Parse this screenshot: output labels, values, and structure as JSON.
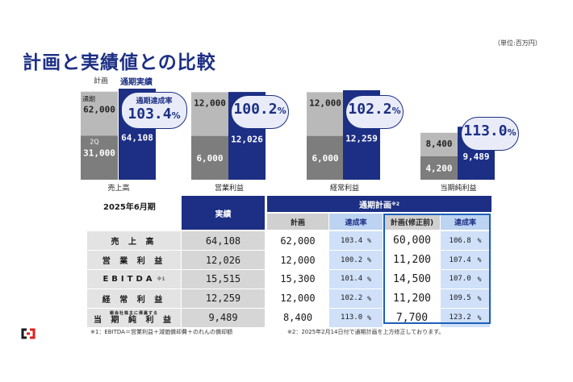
{
  "header": {
    "unit": "（単位:百万円）",
    "title": "計画と実績値との比較",
    "legend_plan": "計画",
    "legend_actual": "通期実績"
  },
  "chart_data": {
    "type": "bar",
    "categories": [
      "売上高",
      "営業利益",
      "経常利益",
      "当期純利益"
    ],
    "series_plan_annual": [
      62000,
      12000,
      12000,
      8400
    ],
    "series_plan_2q": [
      31000,
      6000,
      6000,
      4200
    ],
    "series_actual": [
      64108,
      12026,
      12259,
      9489
    ],
    "plan_top_labels": [
      "62,000",
      "12,000",
      "12,000",
      "8,400"
    ],
    "plan_mid_labels": [
      "31,000",
      "6,000",
      "6,000",
      "4,200"
    ],
    "actual_labels": [
      "64,108",
      "12,026",
      "12,259",
      "9,489"
    ],
    "achievement_rates": [
      "103.4",
      "100.2",
      "102.2",
      "113.0"
    ],
    "stack_label_annual": "通期",
    "stack_label_2q": "2Q",
    "bubble_label": "通期達成率",
    "pct_sign": "%",
    "colors": {
      "plan_light": "#b9b9b9",
      "plan_dark": "#7d7d7d",
      "actual": "#1c2f84"
    }
  },
  "table": {
    "period": "2025年6月期",
    "header_actual": "実績",
    "header_plan_group": "通期計画",
    "header_plan_group_note": "※2",
    "header_plan": "計画",
    "header_rate": "達成率",
    "header_revised": "計画(修正前)",
    "header_revised_rate": "達成率",
    "rows": [
      {
        "label": "売 上 高",
        "label_note": "",
        "actual": "64,108",
        "plan": "62,000",
        "rate": "103.4",
        "revised": "60,000",
        "revised_rate": "106.8"
      },
      {
        "label": "営 業 利 益",
        "label_note": "",
        "actual": "12,026",
        "plan": "12,000",
        "rate": "100.2",
        "revised": "11,200",
        "revised_rate": "107.4"
      },
      {
        "label": "EBITDA",
        "label_note": "※1",
        "actual": "15,515",
        "plan": "15,300",
        "rate": "101.4",
        "revised": "14,500",
        "revised_rate": "107.0"
      },
      {
        "label": "経 常 利 益",
        "label_note": "",
        "actual": "12,259",
        "plan": "12,000",
        "rate": "102.2",
        "revised": "11,200",
        "revised_rate": "109.5"
      },
      {
        "label": "当 期 純 利 益",
        "label_note": "親会社株主に帰属する",
        "actual": "9,489",
        "plan": "8,400",
        "rate": "113.0",
        "revised": "7,700",
        "revised_rate": "123.2"
      }
    ],
    "pct_sign": "%"
  },
  "notes": {
    "note1": "※1：EBITDA＝営業利益＋減価償却費＋のれんの償却額",
    "note2": "※2：2025年2月14日付で通期計画を上方修正しております。"
  }
}
